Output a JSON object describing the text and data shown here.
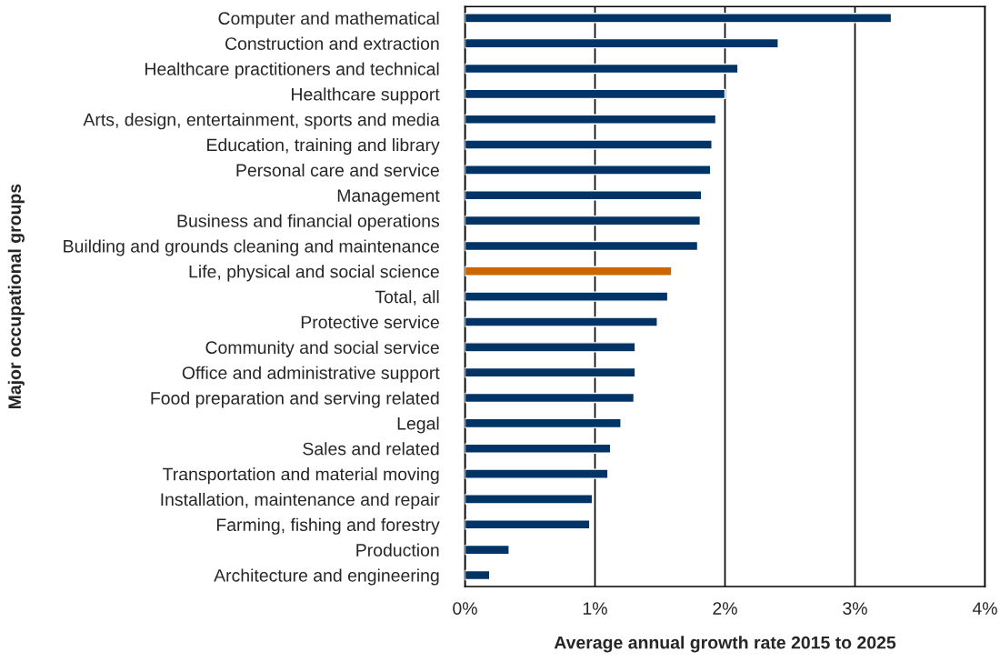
{
  "chart_data": {
    "type": "bar",
    "orientation": "horizontal",
    "xlabel": "Average annual growth rate 2015 to 2025",
    "ylabel": "Major occupational groups",
    "categories": [
      "Computer and mathematical",
      "Construction and extraction",
      "Healthcare practitioners and technical",
      "Healthcare support",
      "Arts, design, entertainment, sports and media",
      "Education, training and library",
      "Personal care and service",
      "Management",
      "Business and financial operations",
      "Building and grounds cleaning and maintenance",
      "Life, physical and social science",
      "Total, all",
      "Protective service",
      "Community and social service",
      "Office and administrative support",
      "Food preparation and serving related",
      "Legal",
      "Sales and related",
      "Transportation and material moving",
      "Installation, maintenance and repair",
      "Farming, fishing and forestry",
      "Production",
      "Architecture and engineering"
    ],
    "values": [
      3.28,
      2.41,
      2.1,
      2.0,
      1.93,
      1.9,
      1.89,
      1.82,
      1.81,
      1.79,
      1.59,
      1.56,
      1.48,
      1.31,
      1.31,
      1.3,
      1.2,
      1.12,
      1.1,
      0.98,
      0.96,
      0.34,
      0.19
    ],
    "colors": [
      "#003366",
      "#003366",
      "#003366",
      "#003366",
      "#003366",
      "#003366",
      "#003366",
      "#003366",
      "#003366",
      "#003366",
      "#cc6600",
      "#003366",
      "#003366",
      "#003366",
      "#003366",
      "#003366",
      "#003366",
      "#003366",
      "#003366",
      "#003366",
      "#003366",
      "#003366",
      "#003366"
    ],
    "xlim": [
      0,
      4
    ],
    "xticks": [
      {
        "value": 0,
        "label": "0%"
      },
      {
        "value": 1,
        "label": "1%"
      },
      {
        "value": 2,
        "label": "2%"
      },
      {
        "value": 3,
        "label": "3%"
      },
      {
        "value": 4,
        "label": "4%"
      }
    ],
    "grid": "x",
    "legend": false
  }
}
